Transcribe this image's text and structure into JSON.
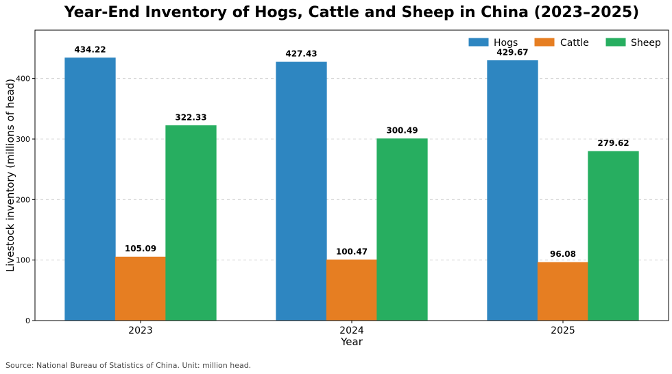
{
  "chart_data": {
    "type": "bar",
    "title": "Year-End Inventory of Hogs, Cattle and Sheep in China (2023–2025)",
    "xlabel": "Year",
    "ylabel": "Livestock inventory (millions of head)",
    "categories": [
      "2023",
      "2024",
      "2025"
    ],
    "series": [
      {
        "name": "Hogs",
        "values": [
          434.22,
          427.43,
          429.67
        ],
        "color": "#2e86c1"
      },
      {
        "name": "Cattle",
        "values": [
          105.09,
          100.47,
          96.08
        ],
        "color": "#e67e22"
      },
      {
        "name": "Sheep",
        "values": [
          322.33,
          300.49,
          279.62
        ],
        "color": "#27ae60"
      }
    ],
    "ylim": [
      0,
      480
    ],
    "yticks": [
      0,
      100,
      200,
      300,
      400
    ],
    "grid": "y-dashed",
    "legend": "top-right"
  },
  "source_note": "Source: National Bureau of Statistics of China. Unit: million head."
}
